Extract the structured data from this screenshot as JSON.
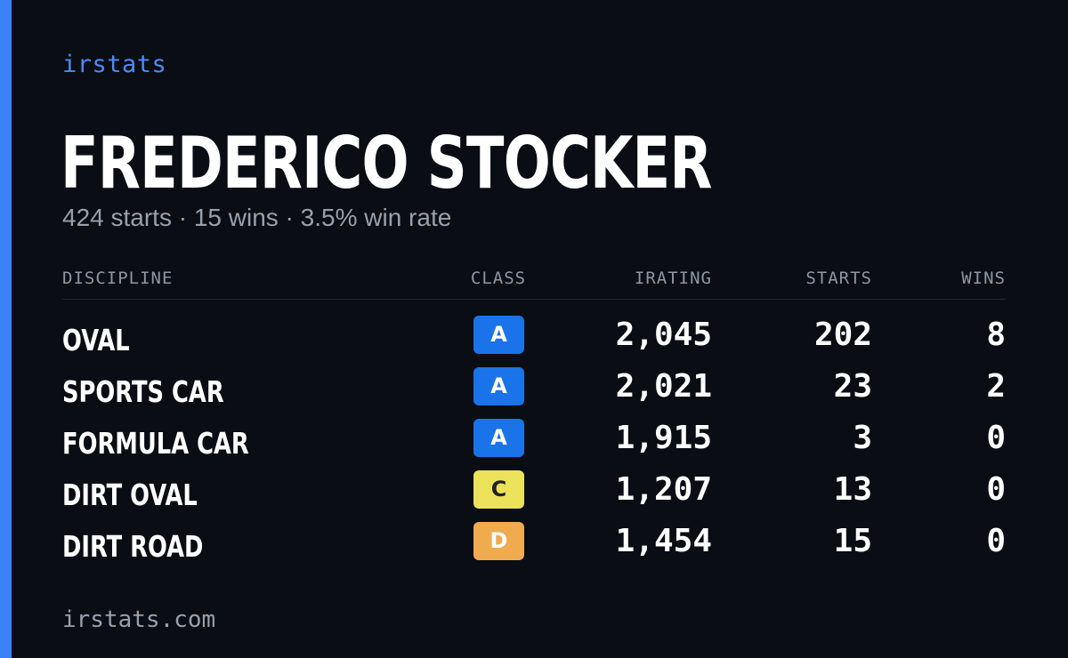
{
  "brand": "irstats",
  "driver": {
    "name": "FREDERICO STOCKER",
    "summary": "424 starts · 15 wins · 3.5% win rate"
  },
  "table": {
    "headers": {
      "discipline": "DISCIPLINE",
      "class": "CLASS",
      "irating": "IRATING",
      "starts": "STARTS",
      "wins": "WINS"
    },
    "rows": [
      {
        "discipline": "OVAL",
        "class": "A",
        "class_color": "#1a73e8",
        "class_text_color": "#ffffff",
        "irating": "2,045",
        "starts": "202",
        "wins": "8"
      },
      {
        "discipline": "SPORTS CAR",
        "class": "A",
        "class_color": "#1a73e8",
        "class_text_color": "#ffffff",
        "irating": "2,021",
        "starts": "23",
        "wins": "2"
      },
      {
        "discipline": "FORMULA CAR",
        "class": "A",
        "class_color": "#1a73e8",
        "class_text_color": "#ffffff",
        "irating": "1,915",
        "starts": "3",
        "wins": "0"
      },
      {
        "discipline": "DIRT OVAL",
        "class": "C",
        "class_color": "#ece25a",
        "class_text_color": "#222222",
        "irating": "1,207",
        "starts": "13",
        "wins": "0"
      },
      {
        "discipline": "DIRT ROAD",
        "class": "D",
        "class_color": "#f0ab4f",
        "class_text_color": "#ffffff",
        "irating": "1,454",
        "starts": "15",
        "wins": "0"
      }
    ]
  },
  "footer": {
    "url": "irstats.com"
  },
  "colors": {
    "background": "#0a0d14",
    "accent": "#3b82f6"
  }
}
